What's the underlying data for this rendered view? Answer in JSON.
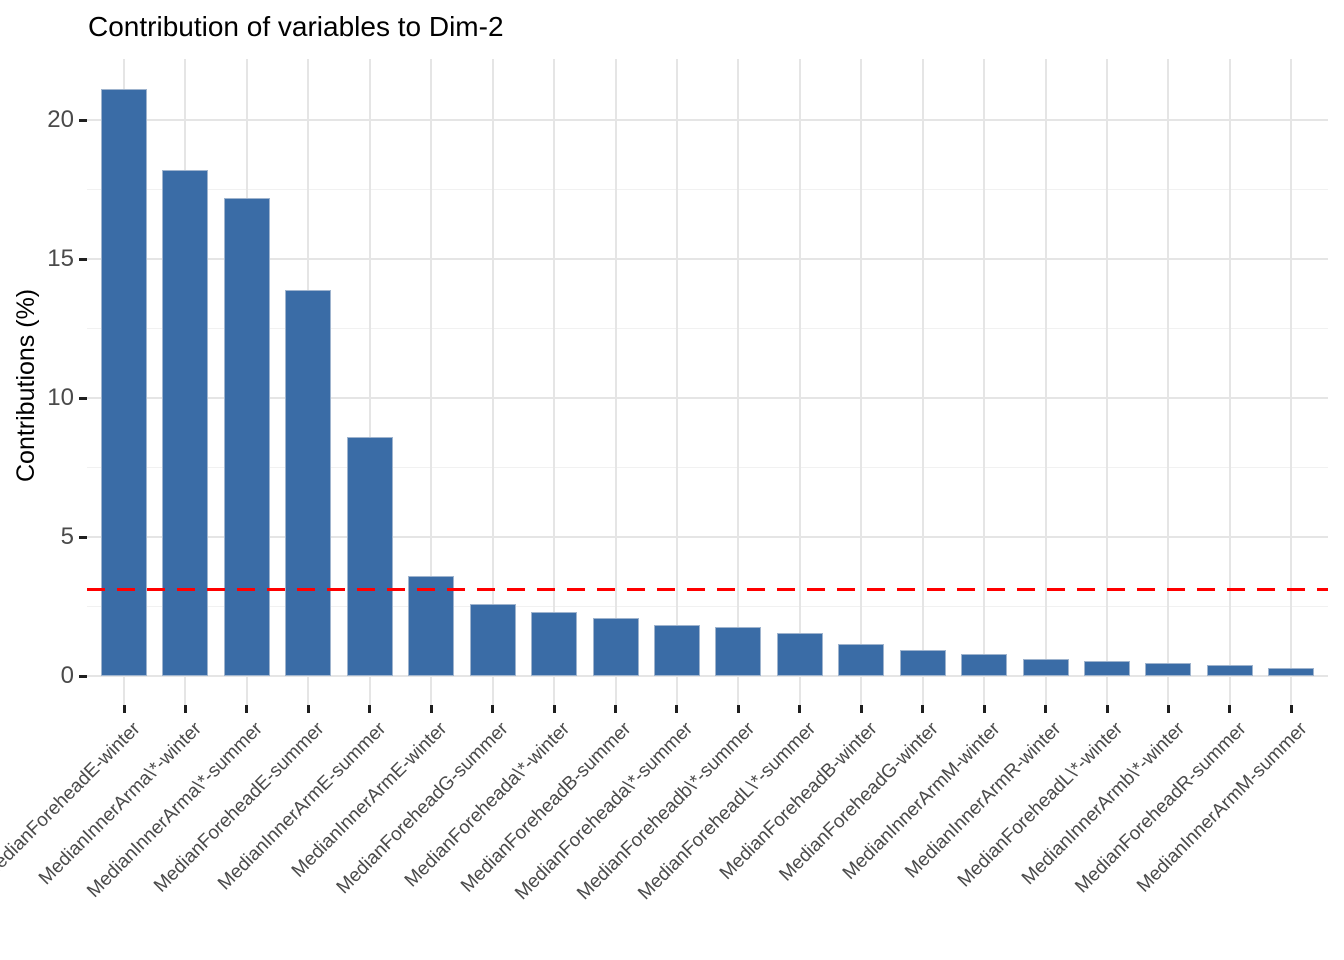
{
  "chart_data": {
    "type": "bar",
    "title": "Contribution of variables to Dim-2",
    "ylabel": "Contributions (%)",
    "xlabel": "",
    "categories": [
      "MedianForeheadE-winter",
      "MedianInnerArma\\*-winter",
      "MedianInnerArma\\*-summer",
      "MedianForeheadE-summer",
      "MedianInnerArmE-summer",
      "MedianInnerArmE-winter",
      "MedianForeheadG-summer",
      "MedianForeheada\\*-winter",
      "MedianForeheadB-summer",
      "MedianForeheada\\*-summer",
      "MedianForeheadb\\*-summer",
      "MedianForeheadL\\*-summer",
      "MedianForeheadB-winter",
      "MedianForeheadG-winter",
      "MedianInnerArmM-winter",
      "MedianInnerArmR-winter",
      "MedianForeheadL\\*-winter",
      "MedianInnerArmb\\*-winter",
      "MedianForeheadR-summer",
      "MedianInnerArmM-summer"
    ],
    "values": [
      21.1,
      18.2,
      17.2,
      13.9,
      8.6,
      3.6,
      2.6,
      2.3,
      2.1,
      1.85,
      1.75,
      1.55,
      1.15,
      0.95,
      0.8,
      0.6,
      0.55,
      0.48,
      0.4,
      0.3
    ],
    "yticks": [
      0,
      5,
      10,
      15,
      20
    ],
    "ylim": [
      -1.1,
      22.2
    ],
    "grid": "major+minor",
    "legend": "none",
    "reference_line": {
      "value": 3.1,
      "style": "dashed",
      "color": "#FF0000"
    },
    "colors": {
      "bar_fill": "#3A6CA6",
      "bar_border": "#9FB4CE",
      "grid_major": "#E5E5E5",
      "grid_minor": "#F1F1F1",
      "tick": "#1F1F1F",
      "axis_text": "#4A4A4A",
      "title": "#000000",
      "background": "#FFFFFF"
    }
  }
}
